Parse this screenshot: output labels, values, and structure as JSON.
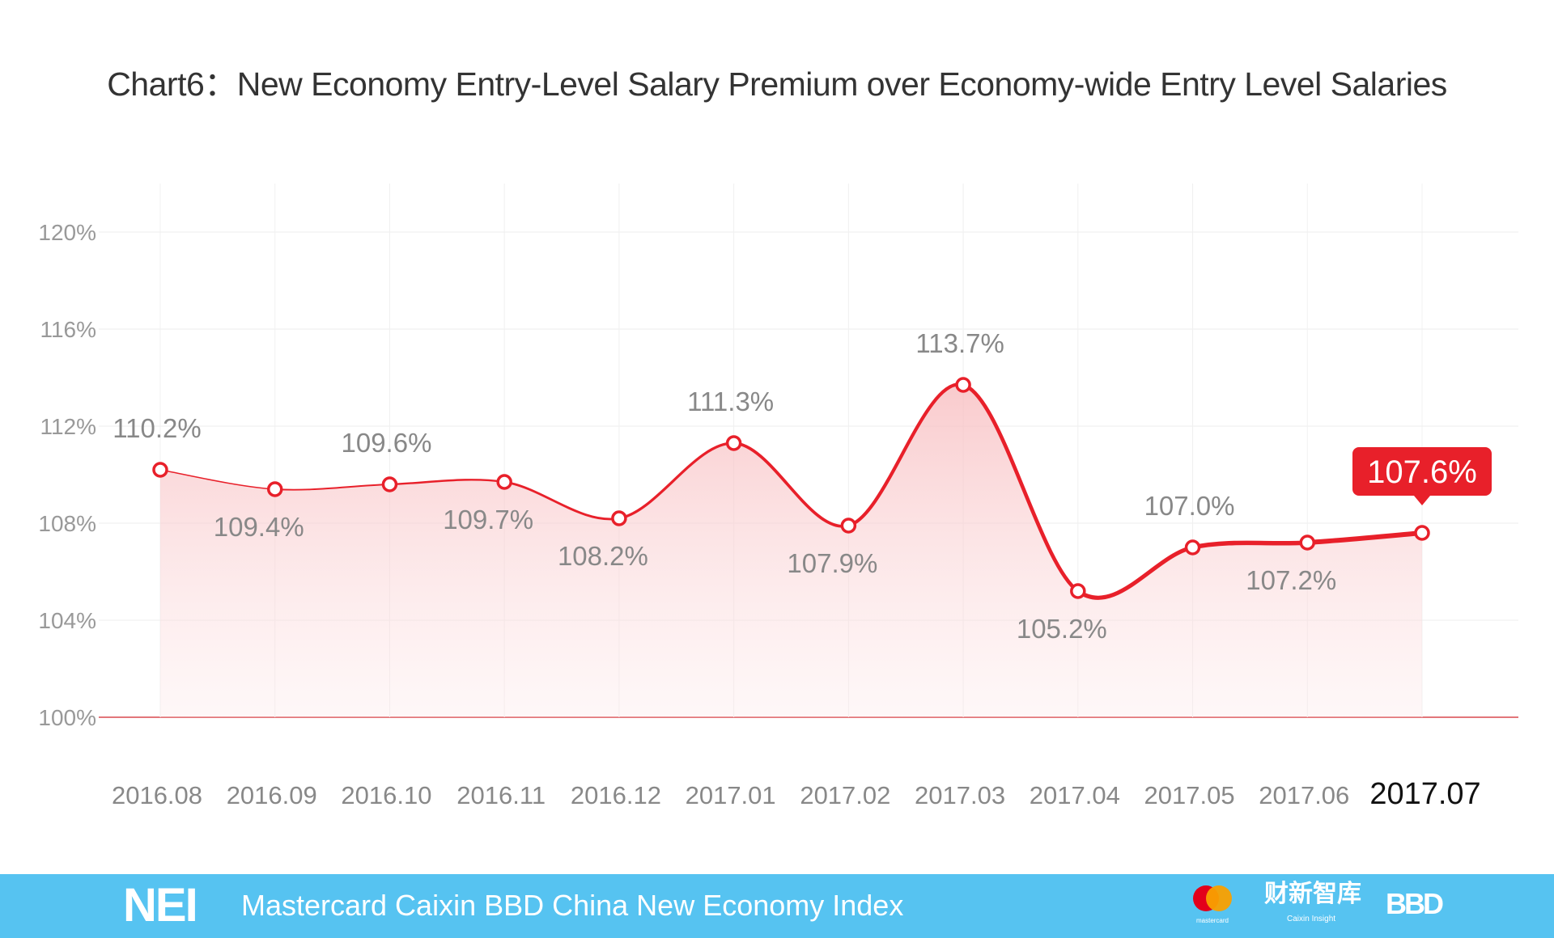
{
  "chart_data": {
    "type": "line",
    "title": "Chart6：New Economy Entry-Level Salary Premium over Economy-wide Entry Level Salaries",
    "categories": [
      "2016.08",
      "2016.09",
      "2016.10",
      "2016.11",
      "2016.12",
      "2017.01",
      "2017.02",
      "2017.03",
      "2017.04",
      "2017.05",
      "2017.06",
      "2017.07"
    ],
    "values": [
      110.2,
      109.4,
      109.6,
      109.7,
      108.2,
      111.3,
      107.9,
      113.7,
      105.2,
      107.0,
      107.2,
      107.6
    ],
    "data_labels": [
      "110.2%",
      "109.4%",
      "109.6%",
      "109.7%",
      "108.2%",
      "111.3%",
      "107.9%",
      "113.7%",
      "105.2%",
      "107.0%",
      "107.2%",
      "107.6%"
    ],
    "y_ticks": [
      "100%",
      "104%",
      "108%",
      "112%",
      "116%",
      "120%"
    ],
    "y_tick_values": [
      100,
      104,
      108,
      112,
      116,
      120
    ],
    "ylim": [
      100,
      120
    ],
    "grid": true,
    "smooth": true,
    "area_fill": true,
    "line_color": "#e8202a",
    "highlight_last": true
  },
  "footer": {
    "logo": "NEI",
    "text": "Mastercard Caixin BBD China New Economy Index",
    "caixin_logo": "财新智库",
    "caixin_sub": "Caixin Insight",
    "mastercard_logo": "mastercard",
    "bbd_logo": "BBD",
    "background": "#56c3f1"
  }
}
